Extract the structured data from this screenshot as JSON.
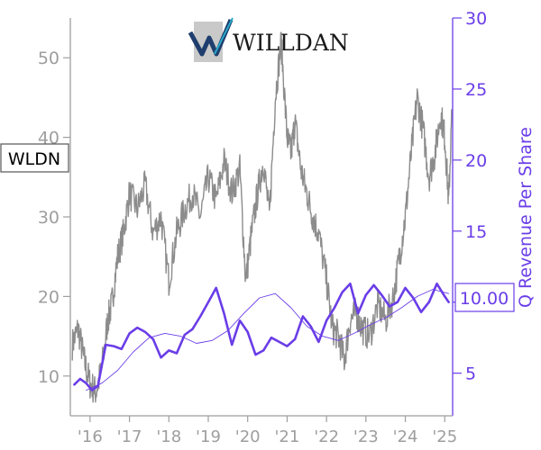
{
  "chart_data": {
    "type": "line",
    "ticker": "WLDN",
    "logo_text": "WILLDAN",
    "x_tick_labels": [
      "'16",
      "'17",
      "'18",
      "'19",
      "'20",
      "'21",
      "'22",
      "'23",
      "'24",
      "'25"
    ],
    "x_tick_positions": [
      2016,
      2017,
      2018,
      2019,
      2020,
      2021,
      2022,
      2023,
      2024,
      2025
    ],
    "xlim": [
      2015.5,
      2025.2
    ],
    "y_left": {
      "ylim": [
        5,
        55
      ],
      "ticks": [
        10,
        20,
        30,
        40,
        50
      ]
    },
    "y_right": {
      "label": "Q Revenue Per Share",
      "ylim": [
        2,
        30
      ],
      "ticks": [
        5,
        10,
        15,
        20,
        25,
        30
      ]
    },
    "current_value_label": "10.00",
    "colors": {
      "price": "#8c8c8c",
      "revenue": "#6a3de8",
      "ticker_border": "#555555"
    },
    "series": [
      {
        "axis": "left",
        "style": "price",
        "x": [
          2015.55,
          2015.7,
          2015.85,
          2016.0,
          2016.15,
          2016.3,
          2016.45,
          2016.55,
          2016.7,
          2016.85,
          2017.0,
          2017.2,
          2017.4,
          2017.6,
          2017.8,
          2018.0,
          2018.2,
          2018.4,
          2018.6,
          2018.8,
          2019.0,
          2019.2,
          2019.4,
          2019.6,
          2019.8,
          2019.95,
          2020.1,
          2020.25,
          2020.4,
          2020.55,
          2020.7,
          2020.85,
          2021.0,
          2021.1,
          2021.2,
          2021.35,
          2021.5,
          2021.65,
          2021.8,
          2022.0,
          2022.15,
          2022.3,
          2022.45,
          2022.6,
          2022.75,
          2022.9,
          2023.1,
          2023.3,
          2023.5,
          2023.7,
          2023.85,
          2024.0,
          2024.15,
          2024.3,
          2024.45,
          2024.6,
          2024.75,
          2024.9,
          2025.0,
          2025.1,
          2025.18
        ],
        "y": [
          14,
          16,
          12,
          9,
          8,
          11,
          17,
          19,
          25,
          28,
          33,
          31,
          34,
          28,
          30,
          22,
          28,
          31,
          33,
          30,
          35,
          32,
          37,
          33,
          36,
          22,
          28,
          33,
          37,
          30,
          45,
          52,
          40,
          38,
          42,
          36,
          33,
          30,
          28,
          22,
          16,
          15,
          12,
          17,
          18,
          16,
          15,
          19,
          17,
          20,
          25,
          30,
          38,
          45,
          41,
          35,
          38,
          43,
          40,
          32,
          43
        ]
      },
      {
        "axis": "right",
        "style": "revenue-thick",
        "x": [
          2015.6,
          2015.75,
          2015.9,
          2016.05,
          2016.2,
          2016.4,
          2016.6,
          2016.8,
          2017.0,
          2017.2,
          2017.4,
          2017.6,
          2017.8,
          2018.0,
          2018.2,
          2018.4,
          2018.6,
          2018.8,
          2019.0,
          2019.2,
          2019.4,
          2019.6,
          2019.8,
          2020.0,
          2020.2,
          2020.4,
          2020.6,
          2020.8,
          2021.0,
          2021.2,
          2021.4,
          2021.6,
          2021.8,
          2022.0,
          2022.2,
          2022.4,
          2022.6,
          2022.8,
          2023.0,
          2023.2,
          2023.4,
          2023.6,
          2023.8,
          2024.0,
          2024.2,
          2024.4,
          2024.6,
          2024.8,
          2025.0,
          2025.1
        ],
        "y": [
          4.2,
          4.6,
          4.3,
          3.8,
          4.1,
          7.0,
          6.9,
          6.7,
          7.8,
          8.2,
          7.9,
          7.4,
          6.1,
          6.6,
          6.4,
          7.7,
          8.1,
          9.0,
          10.0,
          11.0,
          9.2,
          7.0,
          8.7,
          7.9,
          6.3,
          6.6,
          7.5,
          7.2,
          6.9,
          7.4,
          9.0,
          8.3,
          7.2,
          8.7,
          9.6,
          10.7,
          11.3,
          9.2,
          10.5,
          11.2,
          10.5,
          9.7,
          10.0,
          11.0,
          10.3,
          9.3,
          10.0,
          11.3,
          10.4,
          10.0
        ]
      },
      {
        "axis": "right",
        "style": "revenue-thin",
        "x": [
          2015.9,
          2016.3,
          2016.7,
          2017.1,
          2017.5,
          2017.9,
          2018.3,
          2018.7,
          2019.1,
          2019.5,
          2019.9,
          2020.3,
          2020.7,
          2021.1,
          2021.5,
          2021.9,
          2022.3,
          2022.7,
          2023.1,
          2023.5,
          2023.9,
          2024.3,
          2024.7,
          2025.1
        ],
        "y": [
          3.8,
          4.3,
          5.2,
          6.5,
          7.5,
          7.8,
          7.6,
          7.1,
          7.3,
          8.0,
          9.2,
          10.3,
          10.6,
          9.6,
          8.3,
          7.6,
          7.3,
          7.8,
          8.4,
          8.9,
          9.6,
          10.4,
          10.9,
          10.6
        ]
      }
    ]
  }
}
